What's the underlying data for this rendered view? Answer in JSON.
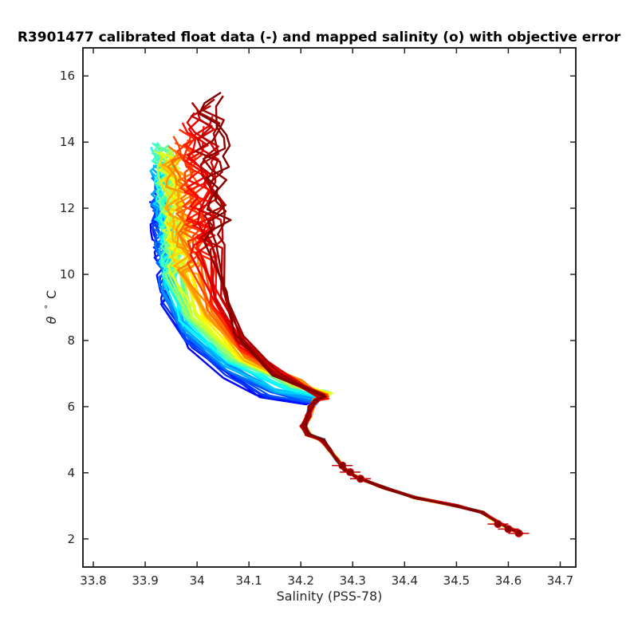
{
  "chart_data": {
    "type": "line",
    "title": "R3901477 calibrated float data (-) and mapped salinity (o) with objective error",
    "xlabel": "Salinity (PSS-78)",
    "ylabel_symbol": "θ",
    "ylabel_units": "° C",
    "xlim": [
      33.78,
      34.73
    ],
    "ylim": [
      1.15,
      16.85
    ],
    "xticks": [
      33.8,
      33.9,
      34.0,
      34.1,
      34.2,
      34.3,
      34.4,
      34.5,
      34.6,
      34.7
    ],
    "xtick_labels": [
      "33.8",
      "33.9",
      "34",
      "34.1",
      "34.2",
      "34.3",
      "34.4",
      "34.5",
      "34.6",
      "34.7"
    ],
    "yticks": [
      2,
      4,
      6,
      8,
      10,
      12,
      14,
      16
    ],
    "ytick_labels": [
      "2",
      "4",
      "6",
      "8",
      "10",
      "12",
      "14",
      "16"
    ],
    "grid": false,
    "colormap": "jet",
    "colormap_colors": [
      "#00008f",
      "#0000ff",
      "#0080ff",
      "#00ffff",
      "#80ff80",
      "#ffff00",
      "#ff8000",
      "#ff0000",
      "#800000"
    ],
    "profile_count": 60,
    "shared_deep_trace": [
      [
        34.23,
        6.2
      ],
      [
        34.22,
        6.0
      ],
      [
        34.215,
        5.7
      ],
      [
        34.205,
        5.4
      ],
      [
        34.215,
        5.15
      ],
      [
        34.24,
        5.0
      ],
      [
        34.255,
        4.7
      ],
      [
        34.27,
        4.4
      ],
      [
        34.285,
        4.1
      ],
      [
        34.31,
        3.85
      ],
      [
        34.36,
        3.55
      ],
      [
        34.42,
        3.25
      ],
      [
        34.5,
        3.0
      ],
      [
        34.55,
        2.8
      ],
      [
        34.58,
        2.5
      ],
      [
        34.605,
        2.3
      ],
      [
        34.625,
        2.15
      ]
    ],
    "profile_families": [
      {
        "group": "early-blue",
        "shallow": [
          [
            33.92,
            12.2
          ],
          [
            33.93,
            10.5
          ],
          [
            33.94,
            9.0
          ],
          [
            33.99,
            7.8
          ],
          [
            34.06,
            6.9
          ],
          [
            34.12,
            6.3
          ],
          [
            34.2,
            6.1
          ]
        ]
      },
      {
        "group": "mid-cyan-green",
        "shallow": [
          [
            33.93,
            14.0
          ],
          [
            33.94,
            12.0
          ],
          [
            33.95,
            10.0
          ],
          [
            33.97,
            8.8
          ],
          [
            34.06,
            7.5
          ],
          [
            34.18,
            6.6
          ],
          [
            34.25,
            6.4
          ]
        ]
      },
      {
        "group": "mid-yellow",
        "shallow": [
          [
            33.95,
            13.5
          ],
          [
            33.96,
            11.5
          ],
          [
            33.98,
            10.0
          ],
          [
            34.02,
            8.7
          ],
          [
            34.1,
            7.4
          ],
          [
            34.2,
            6.7
          ],
          [
            34.25,
            6.3
          ]
        ]
      },
      {
        "group": "late-red",
        "shallow": [
          [
            34.03,
            15.5
          ],
          [
            34.03,
            13.0
          ],
          [
            34.04,
            11.0
          ],
          [
            34.05,
            9.5
          ],
          [
            34.08,
            8.2
          ],
          [
            34.15,
            7.0
          ],
          [
            34.24,
            6.3
          ]
        ]
      }
    ],
    "mapped_points": [
      {
        "s": 34.28,
        "t": 4.22,
        "err": 0.02
      },
      {
        "s": 34.295,
        "t": 4.02,
        "err": 0.02
      },
      {
        "s": 34.315,
        "t": 3.82,
        "err": 0.02
      },
      {
        "s": 34.58,
        "t": 2.45,
        "err": 0.02
      },
      {
        "s": 34.6,
        "t": 2.3,
        "err": 0.02
      },
      {
        "s": 34.62,
        "t": 2.17,
        "err": 0.02
      }
    ]
  }
}
